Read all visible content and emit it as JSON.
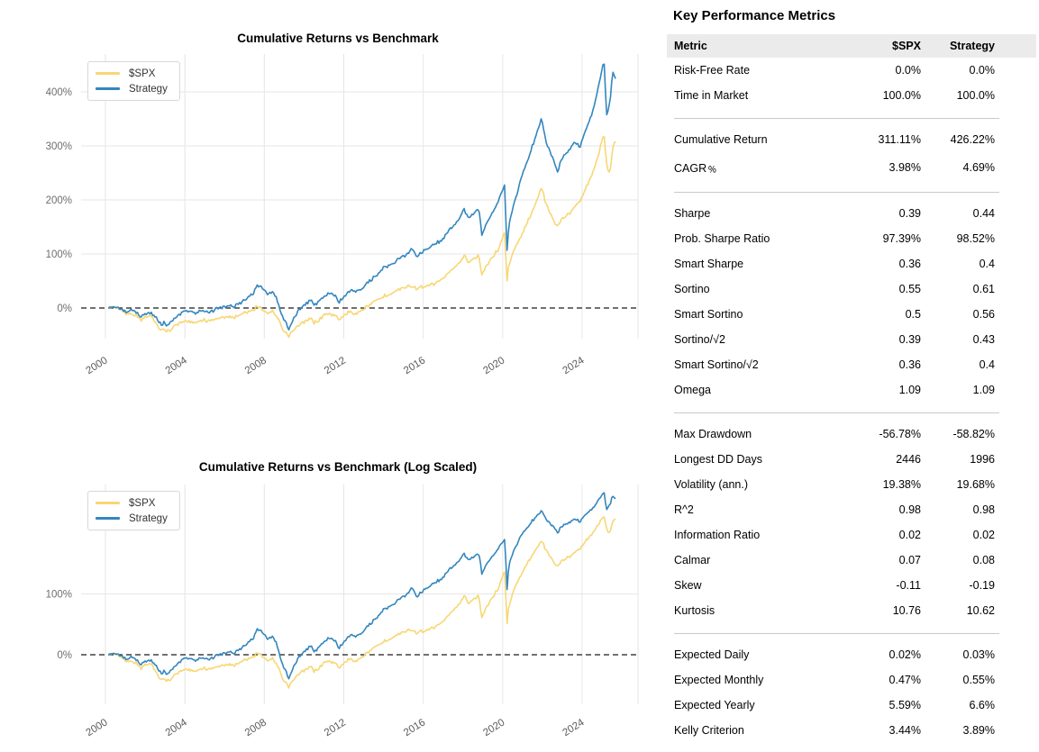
{
  "chart_data": [
    {
      "type": "line",
      "title": "Cumulative Returns vs Benchmark",
      "scale": "linear",
      "ylabel_format": "percent",
      "yticks_pct": [
        0,
        100,
        200,
        300,
        400
      ],
      "xticks": [
        2000,
        2004,
        2008,
        2012,
        2016,
        2020,
        2024
      ],
      "x_range_years": [
        2000.15,
        2025.7
      ],
      "ylim_pct": [
        -62,
        470
      ],
      "grid": true,
      "zero_line": "black-dashed",
      "legend_position": "upper-left",
      "x_years": [
        2000.15,
        2000.4,
        2000.6,
        2000.8,
        2001.0,
        2001.15,
        2001.3,
        2001.5,
        2001.7,
        2001.8,
        2001.95,
        2002.1,
        2002.3,
        2002.5,
        2002.7,
        2002.85,
        2003.0,
        2003.1,
        2003.25,
        2003.5,
        2003.75,
        2004.0,
        2004.25,
        2004.5,
        2004.75,
        2005.0,
        2005.25,
        2005.5,
        2005.75,
        2006.0,
        2006.25,
        2006.5,
        2006.75,
        2007.0,
        2007.25,
        2007.5,
        2007.65,
        2007.8,
        2008.0,
        2008.2,
        2008.4,
        2008.6,
        2008.8,
        2008.95,
        2009.1,
        2009.2,
        2009.35,
        2009.6,
        2009.85,
        2010.1,
        2010.35,
        2010.5,
        2010.7,
        2010.95,
        2011.2,
        2011.45,
        2011.6,
        2011.75,
        2011.9,
        2012.1,
        2012.35,
        2012.6,
        2012.85,
        2013.1,
        2013.4,
        2013.7,
        2014.0,
        2014.3,
        2014.6,
        2014.9,
        2015.2,
        2015.45,
        2015.7,
        2015.85,
        2016.0,
        2016.3,
        2016.6,
        2016.9,
        2017.2,
        2017.5,
        2017.8,
        2018.05,
        2018.3,
        2018.6,
        2018.8,
        2018.95,
        2019.2,
        2019.5,
        2019.8,
        2020.1,
        2020.22,
        2020.3,
        2020.5,
        2020.75,
        2021.0,
        2021.3,
        2021.6,
        2021.95,
        2022.2,
        2022.45,
        2022.75,
        2023.0,
        2023.3,
        2023.6,
        2023.9,
        2024.2,
        2024.5,
        2024.8,
        2025.0,
        2025.1,
        2025.25,
        2025.4,
        2025.55,
        2025.7
      ],
      "series": [
        {
          "name": "$SPX",
          "color": "#F7D774",
          "values_pct": [
            0,
            2,
            -1,
            -5,
            -9,
            -13,
            -9,
            -13,
            -18,
            -24,
            -16,
            -18,
            -15,
            -25,
            -38,
            -42,
            -39,
            -44,
            -41,
            -33,
            -28,
            -23,
            -25,
            -27,
            -25,
            -22,
            -24,
            -21,
            -20,
            -17,
            -15,
            -18,
            -13,
            -9,
            -6,
            -2,
            3,
            0,
            -4,
            -10,
            -7,
            -14,
            -30,
            -42,
            -46,
            -54,
            -47,
            -36,
            -28,
            -25,
            -19,
            -27,
            -23,
            -15,
            -10,
            -12,
            -14,
            -22,
            -17,
            -11,
            -7,
            -10,
            -5,
            1,
            8,
            14,
            22,
            26,
            31,
            36,
            40,
            42,
            34,
            40,
            36,
            42,
            46,
            52,
            62,
            72,
            82,
            97,
            84,
            94,
            97,
            60,
            80,
            95,
            110,
            140,
            53,
            78,
            100,
            120,
            140,
            163,
            186,
            225,
            190,
            172,
            150,
            165,
            172,
            188,
            200,
            222,
            248,
            278,
            310,
            322,
            262,
            248,
            298,
            311
          ]
        },
        {
          "name": "Strategy",
          "color": "#3386BE",
          "values_pct": [
            0,
            3,
            1,
            -2,
            -5,
            -8,
            -4,
            -8,
            -12,
            -17,
            -10,
            -12,
            -9,
            -17,
            -27,
            -30,
            -27,
            -31,
            -28,
            -20,
            -12,
            -5,
            -7,
            -9,
            -7,
            -6,
            -7,
            -3,
            0,
            3,
            6,
            2,
            9,
            15,
            22,
            30,
            44,
            39,
            34,
            26,
            31,
            21,
            -2,
            -20,
            -28,
            -39,
            -30,
            -12,
            0,
            7,
            15,
            3,
            10,
            20,
            28,
            25,
            22,
            11,
            17,
            26,
            32,
            28,
            35,
            43,
            53,
            63,
            73,
            79,
            86,
            93,
            100,
            110,
            94,
            103,
            105,
            112,
            118,
            126,
            138,
            150,
            163,
            184,
            165,
            178,
            185,
            136,
            158,
            178,
            198,
            230,
            106,
            150,
            185,
            215,
            248,
            278,
            310,
            352,
            305,
            285,
            252,
            278,
            290,
            305,
            300,
            330,
            360,
            405,
            440,
            458,
            352,
            380,
            438,
            426
          ]
        }
      ],
      "final_values_pct": {
        "$SPX": 311.11,
        "Strategy": 426.22
      }
    },
    {
      "type": "line",
      "title": "Cumulative Returns vs Benchmark (Log Scaled)",
      "scale": "symlog",
      "ylabel_format": "percent",
      "yticks_pct": [
        0,
        100
      ],
      "xticks": [
        2000,
        2004,
        2008,
        2012,
        2016,
        2020,
        2024
      ],
      "x_range_years": [
        2000.15,
        2025.7
      ],
      "grid": true,
      "zero_line": "black-dashed",
      "legend_position": "upper-left",
      "series_from_chart": 0
    }
  ],
  "metrics_panel": {
    "title": "Key Performance Metrics",
    "columns": [
      "Metric",
      "$SPX",
      "Strategy"
    ],
    "groups": [
      [
        [
          "Risk-Free Rate",
          "0.0%",
          "0.0%"
        ],
        [
          "Time in Market",
          "100.0%",
          "100.0%"
        ]
      ],
      [
        [
          "Cumulative Return",
          "311.11%",
          "426.22%"
        ],
        [
          "CAGR﹪",
          "3.98%",
          "4.69%"
        ]
      ],
      [
        [
          "Sharpe",
          "0.39",
          "0.44"
        ],
        [
          "Prob. Sharpe Ratio",
          "97.39%",
          "98.52%"
        ],
        [
          "Smart Sharpe",
          "0.36",
          "0.4"
        ],
        [
          "Sortino",
          "0.55",
          "0.61"
        ],
        [
          "Smart Sortino",
          "0.5",
          "0.56"
        ],
        [
          "Sortino/√2",
          "0.39",
          "0.43"
        ],
        [
          "Smart Sortino/√2",
          "0.36",
          "0.4"
        ],
        [
          "Omega",
          "1.09",
          "1.09"
        ]
      ],
      [
        [
          "Max Drawdown",
          "-56.78%",
          "-58.82%"
        ],
        [
          "Longest DD Days",
          "2446",
          "1996"
        ],
        [
          "Volatility (ann.)",
          "19.38%",
          "19.68%"
        ],
        [
          "R^2",
          "0.98",
          "0.98"
        ],
        [
          "Information Ratio",
          "0.02",
          "0.02"
        ],
        [
          "Calmar",
          "0.07",
          "0.08"
        ],
        [
          "Skew",
          "-0.11",
          "-0.19"
        ],
        [
          "Kurtosis",
          "10.76",
          "10.62"
        ]
      ],
      [
        [
          "Expected Daily",
          "0.02%",
          "0.03%"
        ],
        [
          "Expected Monthly",
          "0.47%",
          "0.55%"
        ],
        [
          "Expected Yearly",
          "5.59%",
          "6.6%"
        ],
        [
          "Kelly Criterion",
          "3.44%",
          "3.89%"
        ]
      ]
    ]
  },
  "style_colors": {
    "grid": "#e6e6e6",
    "tick_label": "#6e6e6e",
    "zero_line": "#1a1a1a",
    "table_header_bg": "#ebebeb",
    "separator": "#c9c9c9"
  }
}
